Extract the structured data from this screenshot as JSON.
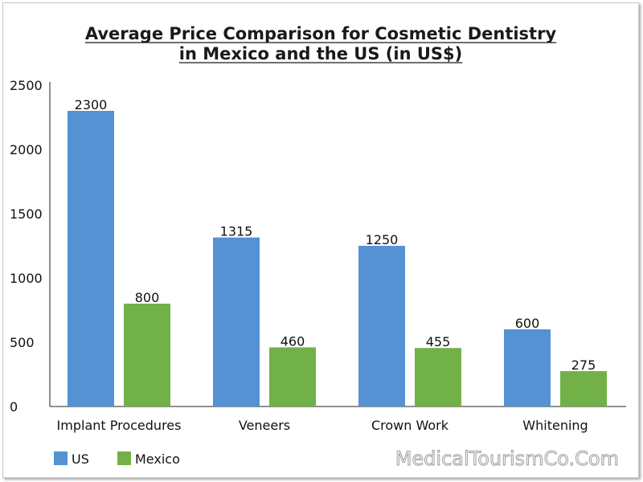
{
  "chart_data": {
    "type": "bar",
    "title": [
      "Average Price Comparison for Cosmetic Dentistry",
      "in Mexico and the US (in US$)"
    ],
    "categories": [
      "Implant Procedures",
      "Veneers",
      "Crown  Work",
      "Whitening"
    ],
    "series": [
      {
        "name": "US",
        "color": "#5592d4",
        "values": [
          2300,
          1315,
          1250,
          600
        ]
      },
      {
        "name": "Mexico",
        "color": "#72b147",
        "values": [
          800,
          460,
          455,
          275
        ]
      }
    ],
    "ylim": [
      0,
      2500
    ],
    "yticks": [
      0,
      500,
      1000,
      1500,
      2000,
      2500
    ],
    "legend_position": "bottom-left",
    "grid": false
  },
  "watermark": "MedicalTourismCo.Com"
}
